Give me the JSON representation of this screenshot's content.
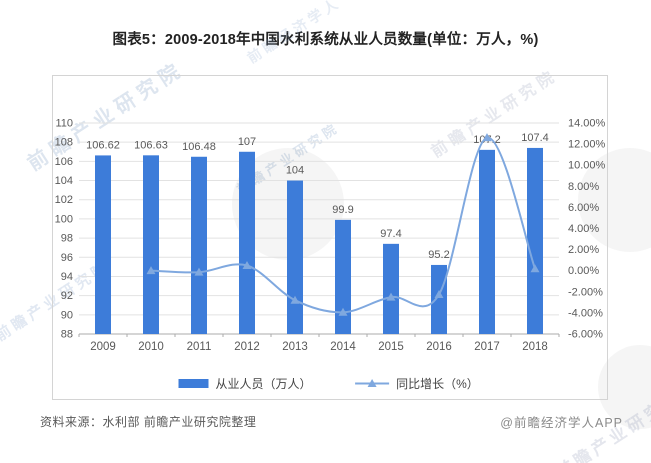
{
  "title": "图表5：2009-2018年中国水利系统从业人员数量(单位：万人，%)",
  "source_note": "资料来源：水利部 前瞻产业研究院整理",
  "credit": "@前瞻经济学人APP",
  "watermark": {
    "brand": "前瞻产业研究院",
    "brand_short": "前瞻经济学人"
  },
  "colors": {
    "bar": "#3d7cd9",
    "line": "#7fa8df",
    "grid": "#e2e2e2",
    "axis_line": "#ababab",
    "axis_text": "#595959",
    "label_text": "#595959",
    "title_text": "#222222"
  },
  "chart_data": {
    "type": "bar",
    "title": "图表5：2009-2018年中国水利系统从业人员数量(单位：万人，%)",
    "categories": [
      "2009",
      "2010",
      "2011",
      "2012",
      "2013",
      "2014",
      "2015",
      "2016",
      "2017",
      "2018"
    ],
    "series": [
      {
        "name": "从业人员（万人）",
        "chart_type": "bar",
        "axis": "left",
        "values": [
          106.62,
          106.63,
          106.48,
          107,
          104,
          99.9,
          97.4,
          95.2,
          107.2,
          107.4
        ],
        "labels": [
          "106.62",
          "106.63",
          "106.48",
          "107",
          "104",
          "99.9",
          "97.4",
          "95.2",
          "107.2",
          "107.4"
        ]
      },
      {
        "name": "同比增长（%）",
        "chart_type": "line",
        "axis": "right",
        "values": [
          null,
          0.01,
          -0.14,
          0.49,
          -2.8,
          -3.94,
          -2.5,
          -2.26,
          12.61,
          0.19
        ]
      }
    ],
    "left_axis": {
      "min": 88,
      "max": 110,
      "step": 2,
      "tick_labels": [
        "110",
        "108",
        "106",
        "104",
        "102",
        "100",
        "98",
        "96",
        "94",
        "92",
        "90",
        "88"
      ]
    },
    "right_axis": {
      "min": -6,
      "max": 14,
      "step": 2,
      "tick_labels": [
        "14.00%",
        "12.00%",
        "10.00%",
        "8.00%",
        "6.00%",
        "4.00%",
        "2.00%",
        "0.00%",
        "-2.00%",
        "-4.00%",
        "-6.00%"
      ]
    },
    "grid": true,
    "legend_position": "bottom"
  }
}
